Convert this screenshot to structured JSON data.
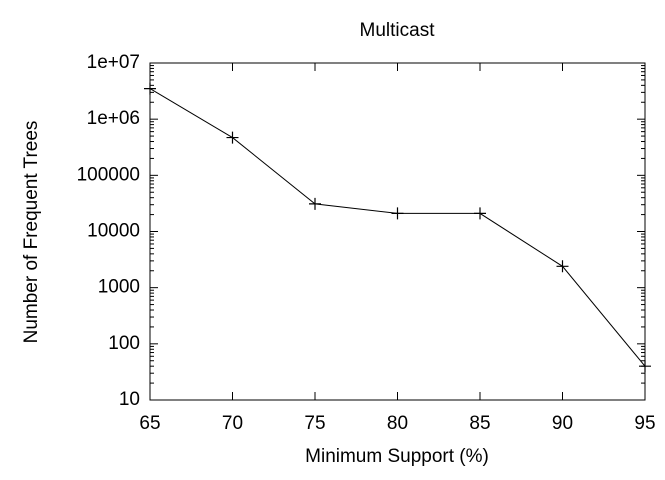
{
  "chart_data": {
    "type": "line",
    "title": "Multicast",
    "x_label": "Minimum Support (%)",
    "y_label": "Number of Frequent Trees",
    "x": [
      65,
      70,
      75,
      80,
      85,
      90,
      95
    ],
    "values": [
      3500000,
      470000,
      31000,
      21000,
      21000,
      2400,
      40
    ],
    "color": "#000000",
    "marker": "+",
    "y_log": true,
    "xlim": [
      65,
      95
    ],
    "xticks": [
      65,
      70,
      75,
      80,
      85,
      90,
      95
    ],
    "ylim": [
      10,
      10000000
    ],
    "yticks": [
      10,
      100,
      1000,
      10000,
      100000,
      {
        "value": 1000000,
        "label": "1e+06"
      },
      {
        "value": 10000000,
        "label": "1e+07"
      }
    ]
  }
}
